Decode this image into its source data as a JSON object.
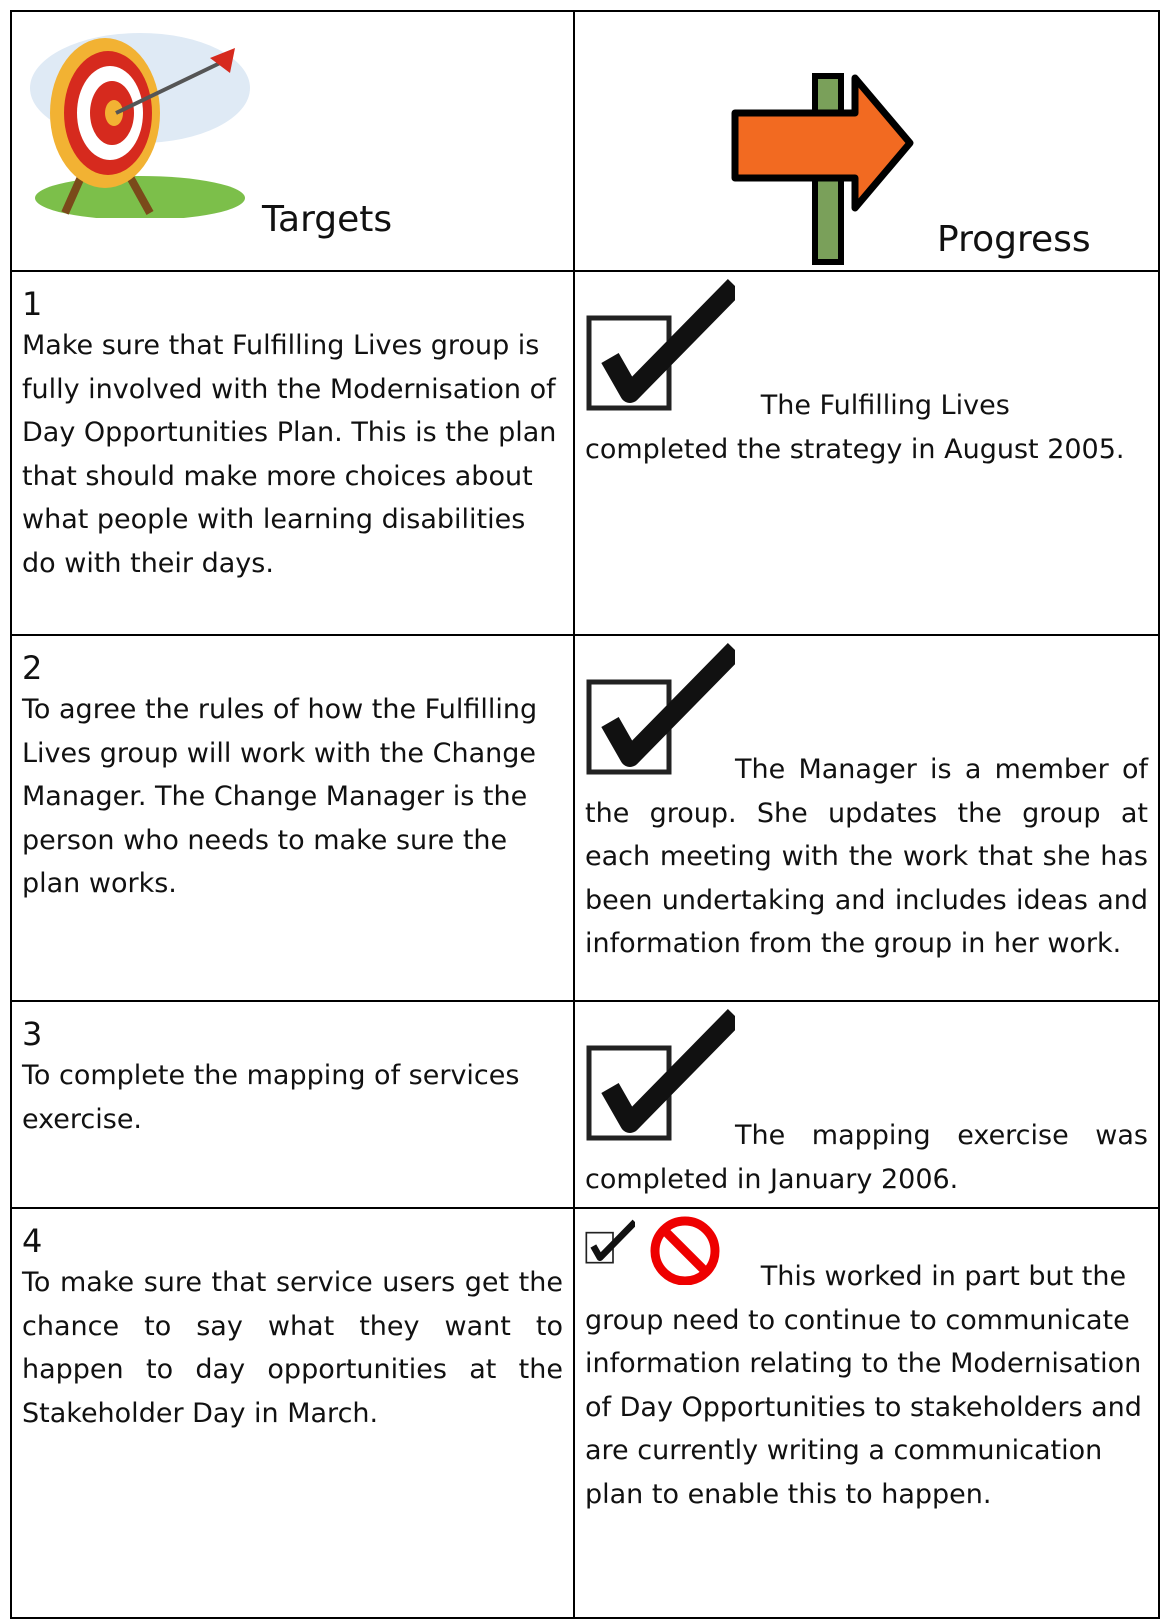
{
  "header": {
    "targets": "Targets",
    "progress": "Progress"
  },
  "rows": [
    {
      "number": "1",
      "target": "Make sure that Fulfilling Lives group is fully involved with the Modernisation of Day Opportunities Plan.  This is the plan that should make more choices about what people with learning disabilities do with their days.",
      "progress": "The Fulfilling Lives completed the strategy in August 2005."
    },
    {
      "number": "2",
      "target": "To agree the rules of how the Fulfilling Lives group will work with the Change Manager.  The Change Manager is the person who needs to make sure the plan works.",
      "progress": "The Manager is a member of the group.  She updates the group at each meeting with the work that she has been undertaking and includes ideas and information from the group in her work."
    },
    {
      "number": "3",
      "target": "To complete the mapping of services exercise.",
      "progress": "The mapping exercise was completed in January 2006."
    },
    {
      "number": "4",
      "target": "To make sure that service users get the chance to say what they want to happen to day opportunities at the Stakeholder Day in March.",
      "progress": "This worked in part but the group need to continue to communicate information relating to the Modernisation of Day Opportunities to stakeholders and are currently writing a communication plan to enable this to happen."
    }
  ]
}
